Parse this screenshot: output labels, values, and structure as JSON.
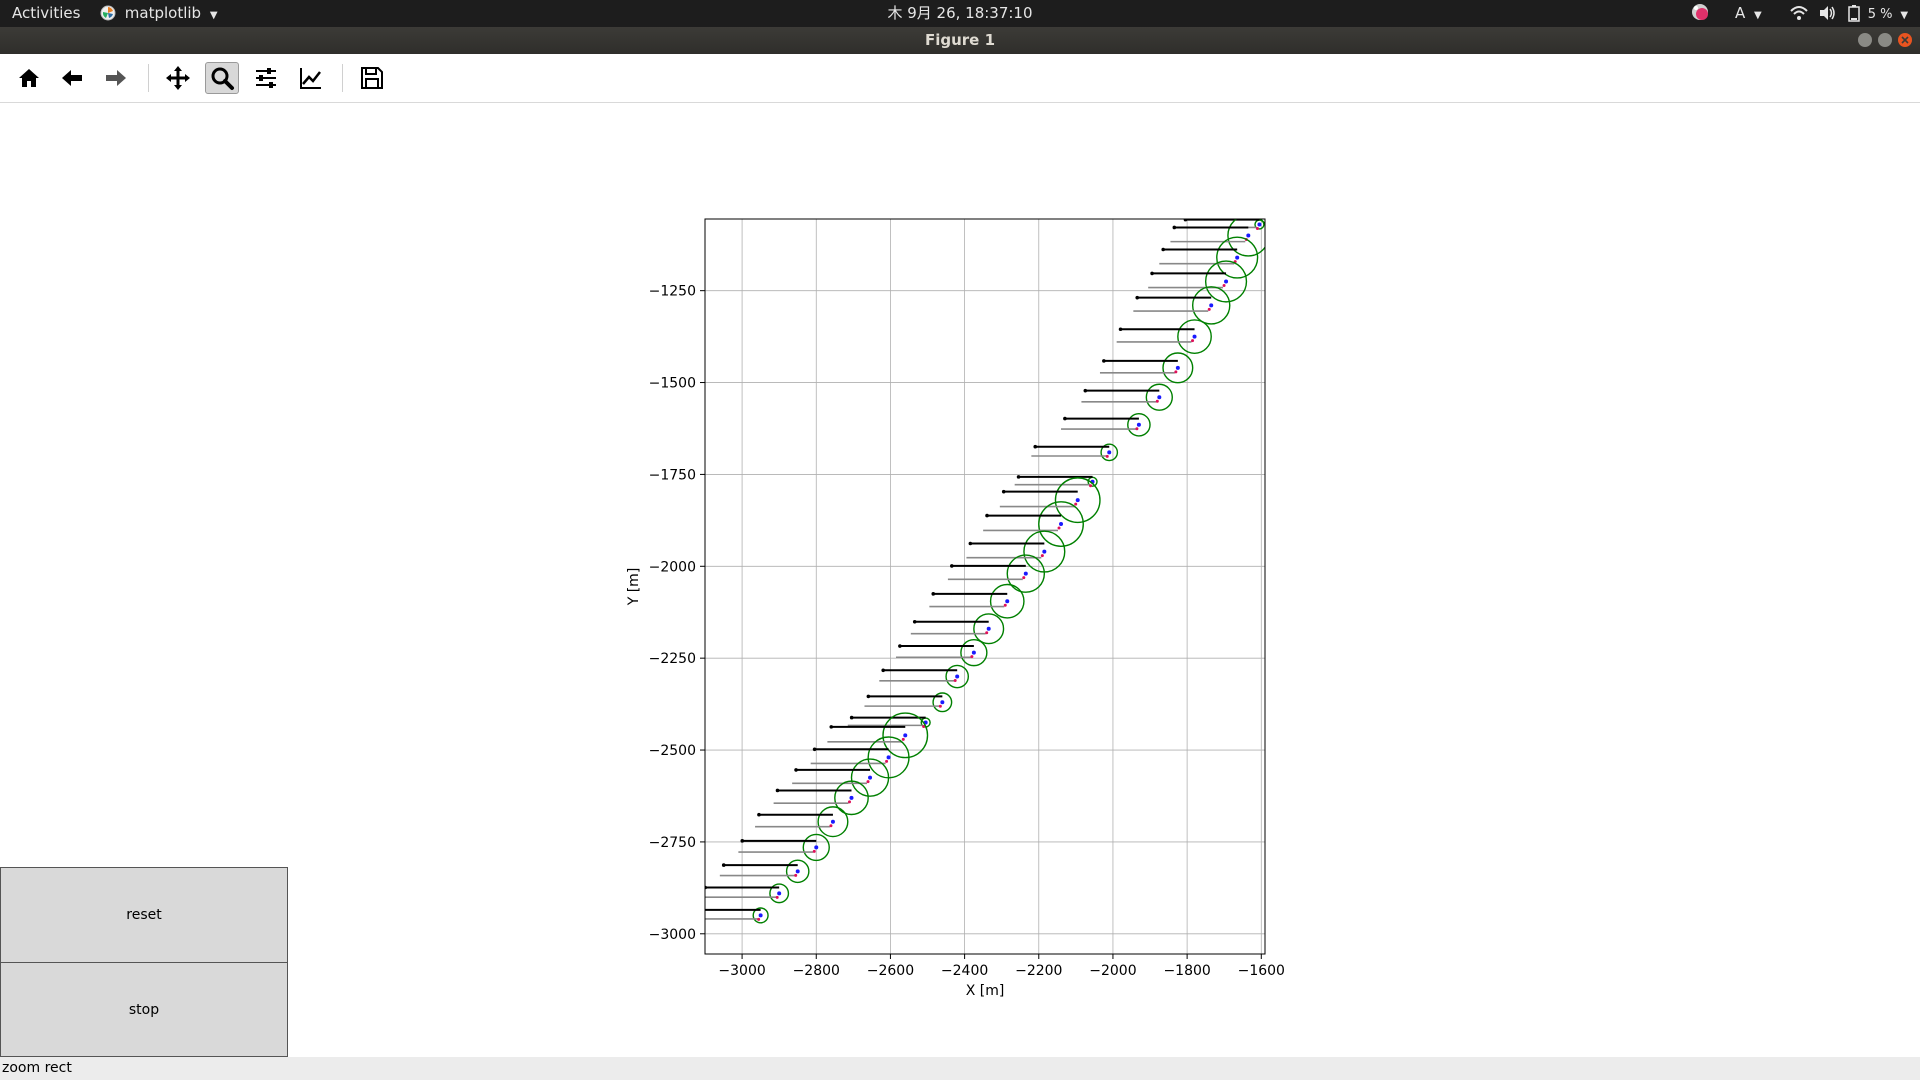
{
  "topbar": {
    "activities": "Activities",
    "app_menu": "matplotlib",
    "clock": "木 9月 26, 18:37:10",
    "keyboard_indicator": "A",
    "battery_percent": "5 %",
    "icons": [
      "color-picker-icon",
      "wifi-icon",
      "volume-icon",
      "battery-icon"
    ]
  },
  "window": {
    "title": "Figure 1",
    "controls": [
      "minimize",
      "maximize",
      "close"
    ],
    "close_color": "#e95420"
  },
  "toolbar": {
    "buttons": [
      {
        "name": "home-icon",
        "tooltip": "Home"
      },
      {
        "name": "back-arrow-icon",
        "tooltip": "Back"
      },
      {
        "name": "forward-arrow-icon",
        "tooltip": "Forward"
      },
      {
        "name": "pan-move-icon",
        "tooltip": "Pan"
      },
      {
        "name": "zoom-magnifier-icon",
        "tooltip": "Zoom",
        "active": true
      },
      {
        "name": "subplots-sliders-icon",
        "tooltip": "Subplots"
      },
      {
        "name": "edit-axes-icon",
        "tooltip": "Customize"
      },
      {
        "name": "save-floppy-icon",
        "tooltip": "Save"
      }
    ]
  },
  "buttons": {
    "reset": "reset",
    "stop": "stop"
  },
  "status": {
    "text": "zoom rect"
  },
  "chart_data": {
    "type": "scatter",
    "title": "",
    "xlabel": "X [m]",
    "ylabel": "Y [m]",
    "xlim": [
      -3100,
      -1590
    ],
    "ylim": [
      -3055,
      -1055
    ],
    "xticks": [
      -3000,
      -2800,
      -2600,
      -2400,
      -2200,
      -2000,
      -1800,
      -1600
    ],
    "xtick_labels": [
      "−3000",
      "−2800",
      "−2600",
      "−2400",
      "−2200",
      "−2000",
      "−1800",
      "−1600"
    ],
    "yticks": [
      -1250,
      -1500,
      -1750,
      -2000,
      -2250,
      -2500,
      -2750,
      -3000
    ],
    "ytick_labels": [
      "−1250",
      "−1500",
      "−1750",
      "−2000",
      "−2250",
      "−2500",
      "−2750",
      "−3000"
    ],
    "grid": true,
    "circle_color": "#008000",
    "vehicle_colors": {
      "fast": "#1a1aff",
      "slow": "#e0105a"
    },
    "vehicles": [
      {
        "x": -1605,
        "y": -1070,
        "r": 12
      },
      {
        "x": -1635,
        "y": -1100,
        "r": 55
      },
      {
        "x": -1665,
        "y": -1160,
        "r": 55
      },
      {
        "x": -1695,
        "y": -1225,
        "r": 55
      },
      {
        "x": -1735,
        "y": -1290,
        "r": 50
      },
      {
        "x": -1780,
        "y": -1375,
        "r": 45
      },
      {
        "x": -1825,
        "y": -1460,
        "r": 40
      },
      {
        "x": -1875,
        "y": -1540,
        "r": 35
      },
      {
        "x": -1930,
        "y": -1615,
        "r": 30
      },
      {
        "x": -2010,
        "y": -1690,
        "r": 22
      },
      {
        "x": -2055,
        "y": -1770,
        "r": 12
      },
      {
        "x": -2095,
        "y": -1820,
        "r": 60
      },
      {
        "x": -2140,
        "y": -1885,
        "r": 60
      },
      {
        "x": -2185,
        "y": -1960,
        "r": 55
      },
      {
        "x": -2235,
        "y": -2020,
        "r": 50
      },
      {
        "x": -2285,
        "y": -2095,
        "r": 45
      },
      {
        "x": -2335,
        "y": -2170,
        "r": 40
      },
      {
        "x": -2375,
        "y": -2235,
        "r": 35
      },
      {
        "x": -2420,
        "y": -2300,
        "r": 30
      },
      {
        "x": -2460,
        "y": -2370,
        "r": 25
      },
      {
        "x": -2505,
        "y": -2425,
        "r": 12
      },
      {
        "x": -2560,
        "y": -2460,
        "r": 60
      },
      {
        "x": -2605,
        "y": -2520,
        "r": 55
      },
      {
        "x": -2655,
        "y": -2575,
        "r": 50
      },
      {
        "x": -2705,
        "y": -2630,
        "r": 45
      },
      {
        "x": -2755,
        "y": -2695,
        "r": 40
      },
      {
        "x": -2800,
        "y": -2765,
        "r": 35
      },
      {
        "x": -2850,
        "y": -2830,
        "r": 30
      },
      {
        "x": -2900,
        "y": -2890,
        "r": 25
      },
      {
        "x": -2950,
        "y": -2950,
        "r": 20
      }
    ]
  }
}
